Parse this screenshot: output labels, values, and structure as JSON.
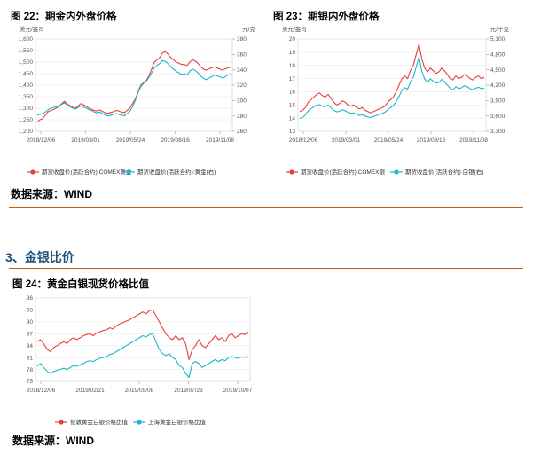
{
  "page": {
    "fig22_title": "图 22：期金内外盘价格",
    "fig23_title": "图 23：期银内外盘价格",
    "fig24_title": "图 24：黄金白银现货价格比值",
    "source_1": "数据来源：WIND",
    "source_2": "数据来源：WIND",
    "section_heading": "3、金银比价"
  },
  "colors": {
    "red": "#e8403a",
    "cyan": "#1ab7cf",
    "rule": "#c55a11",
    "heading": "#1f4e79",
    "grid": "#e6e6e6"
  },
  "chart_data": [
    {
      "id": "fig22",
      "type": "line",
      "left_unit": "美元/盎司",
      "right_unit": "元/克",
      "x_ticks": [
        "2018/12/06",
        "2019/03/01",
        "2019/05/24",
        "2019/08/16",
        "2019/11/08"
      ],
      "y_left": {
        "ticks": [
          "1,200",
          "1,250",
          "1,300",
          "1,350",
          "1,400",
          "1,450",
          "1,500",
          "1,550",
          "1,600"
        ],
        "range": [
          1200,
          1600
        ]
      },
      "y_right": {
        "ticks": [
          "260",
          "280",
          "300",
          "320",
          "340",
          "360",
          "380"
        ],
        "range": [
          260,
          380
        ]
      },
      "series": [
        {
          "name": "期货收盘价(活跃合约):COMEX黄金",
          "axis": "left",
          "color": "#e8403a",
          "values": [
            1240,
            1250,
            1255,
            1270,
            1285,
            1290,
            1295,
            1300,
            1310,
            1320,
            1330,
            1318,
            1312,
            1305,
            1300,
            1310,
            1320,
            1315,
            1308,
            1300,
            1295,
            1290,
            1288,
            1292,
            1286,
            1280,
            1278,
            1282,
            1285,
            1290,
            1288,
            1283,
            1281,
            1290,
            1300,
            1320,
            1340,
            1370,
            1400,
            1410,
            1420,
            1440,
            1470,
            1500,
            1510,
            1520,
            1540,
            1545,
            1535,
            1520,
            1510,
            1500,
            1495,
            1490,
            1490,
            1485,
            1500,
            1510,
            1505,
            1495,
            1480,
            1470,
            1465,
            1470,
            1475,
            1480,
            1475,
            1470,
            1465,
            1470,
            1475,
            1478
          ]
        },
        {
          "name": "期货收盘价(活跃合约):黄金(右)",
          "axis": "right",
          "color": "#1ab7cf",
          "values": [
            281,
            282,
            283,
            285,
            288,
            290,
            291,
            292,
            293,
            295,
            297,
            294,
            292,
            290,
            289,
            291,
            293,
            292,
            290,
            288,
            287,
            285,
            284,
            285,
            283,
            281,
            280,
            281,
            282,
            283,
            282,
            281,
            280,
            283,
            286,
            292,
            300,
            310,
            318,
            322,
            325,
            330,
            336,
            343,
            346,
            348,
            352,
            351,
            348,
            344,
            341,
            338,
            336,
            334,
            335,
            333,
            338,
            341,
            339,
            336,
            332,
            329,
            327,
            329,
            331,
            333,
            332,
            331,
            329,
            331,
            333,
            334
          ]
        }
      ]
    },
    {
      "id": "fig23",
      "type": "line",
      "left_unit": "美元/盎司",
      "right_unit": "元/千克",
      "x_ticks": [
        "2018/12/06",
        "2019/03/01",
        "2019/05/24",
        "2019/08/16",
        "2019/11/08"
      ],
      "y_left": {
        "ticks": [
          "13",
          "14",
          "15",
          "16",
          "17",
          "18",
          "19",
          "20"
        ],
        "range": [
          13,
          20
        ]
      },
      "y_right": {
        "ticks": [
          "3,300",
          "3,600",
          "3,900",
          "4,200",
          "4,500",
          "4,800",
          "5,100"
        ],
        "range": [
          3300,
          5100
        ]
      },
      "series": [
        {
          "name": "期货收盘价(活跃合约):COMEX银",
          "axis": "left",
          "color": "#e8403a",
          "values": [
            14.5,
            14.6,
            14.8,
            15.2,
            15.4,
            15.6,
            15.8,
            15.9,
            15.7,
            15.6,
            15.8,
            15.5,
            15.2,
            15.0,
            15.1,
            15.3,
            15.2,
            15.0,
            14.9,
            15.0,
            14.8,
            14.7,
            14.8,
            14.6,
            14.5,
            14.4,
            14.5,
            14.6,
            14.7,
            14.8,
            14.9,
            15.2,
            15.4,
            15.6,
            16.0,
            16.5,
            17.0,
            17.2,
            17.0,
            17.6,
            18.0,
            18.8,
            19.6,
            18.5,
            17.8,
            17.5,
            17.8,
            17.6,
            17.4,
            17.5,
            17.8,
            17.6,
            17.3,
            17.0,
            16.9,
            17.2,
            17.0,
            17.1,
            17.3,
            17.2,
            17.0,
            16.9,
            17.1,
            17.2,
            17.0,
            17.1
          ]
        },
        {
          "name": "期货收盘价(活跃合约):白银(右)",
          "axis": "right",
          "color": "#1ab7cf",
          "values": [
            3550,
            3570,
            3620,
            3700,
            3740,
            3780,
            3810,
            3820,
            3790,
            3780,
            3810,
            3760,
            3710,
            3680,
            3690,
            3720,
            3700,
            3670,
            3650,
            3660,
            3630,
            3610,
            3620,
            3600,
            3580,
            3570,
            3590,
            3610,
            3630,
            3650,
            3670,
            3720,
            3760,
            3800,
            3880,
            3980,
            4100,
            4150,
            4120,
            4260,
            4360,
            4550,
            4750,
            4480,
            4320,
            4260,
            4320,
            4280,
            4240,
            4250,
            4310,
            4270,
            4200,
            4140,
            4110,
            4170,
            4130,
            4150,
            4190,
            4170,
            4130,
            4110,
            4140,
            4160,
            4130,
            4140
          ]
        }
      ]
    },
    {
      "id": "fig24",
      "type": "line",
      "x_ticks": [
        "2018/12/06",
        "2019/02/21",
        "2019/05/08",
        "2019/07/23",
        "2019/10/07"
      ],
      "y_left": {
        "ticks": [
          "75",
          "78",
          "81",
          "84",
          "87",
          "90",
          "93",
          "96"
        ],
        "range": [
          75,
          96
        ]
      },
      "series": [
        {
          "name": "伦敦黄金白银价格比值",
          "axis": "left",
          "color": "#e8403a",
          "values": [
            85.0,
            85.5,
            84.5,
            83.0,
            82.5,
            83.5,
            84.0,
            84.5,
            85.0,
            84.5,
            85.5,
            86.0,
            85.5,
            86.0,
            86.5,
            86.8,
            87.0,
            86.5,
            87.2,
            87.5,
            87.8,
            88.0,
            88.5,
            88.2,
            89.0,
            89.5,
            89.8,
            90.2,
            90.5,
            91.0,
            91.5,
            92.0,
            92.5,
            92.0,
            92.8,
            93.0,
            91.5,
            90.0,
            88.5,
            87.0,
            86.0,
            85.5,
            86.5,
            85.5,
            86.0,
            84.5,
            80.5,
            83.0,
            84.0,
            85.5,
            84.0,
            83.5,
            84.5,
            85.5,
            86.5,
            85.5,
            86.0,
            85.0,
            86.5,
            87.0,
            86.0,
            86.5,
            87.0,
            86.8,
            87.5
          ]
        },
        {
          "name": "上海黄金白银价格比值",
          "axis": "left",
          "color": "#1ab7cf",
          "values": [
            78.8,
            79.5,
            78.5,
            77.5,
            77.0,
            77.5,
            77.8,
            78.0,
            78.3,
            78.0,
            78.5,
            79.0,
            78.8,
            79.2,
            79.5,
            80.0,
            80.2,
            80.0,
            80.5,
            80.8,
            81.0,
            81.3,
            81.8,
            82.0,
            82.5,
            83.0,
            83.5,
            84.0,
            84.5,
            85.0,
            85.5,
            86.0,
            86.5,
            86.2,
            86.8,
            87.0,
            85.0,
            83.0,
            82.0,
            81.5,
            82.0,
            81.0,
            80.5,
            79.0,
            78.5,
            77.0,
            76.0,
            79.5,
            80.0,
            79.5,
            78.5,
            79.0,
            79.5,
            80.0,
            80.5,
            80.0,
            80.5,
            80.2,
            81.0,
            81.3,
            81.0,
            80.8,
            81.2,
            81.0,
            81.3
          ]
        }
      ]
    }
  ]
}
